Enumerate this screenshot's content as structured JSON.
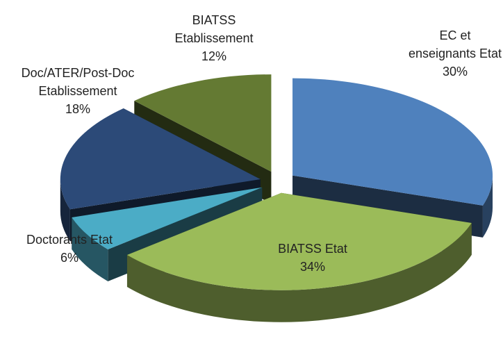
{
  "chart_data": {
    "type": "pie",
    "categories": [
      "EC et enseignants Etat",
      "BIATSS Etat",
      "Doctorants Etat",
      "Doc/ATER/Post-Doc Etablissement",
      "BIATSS Etablissement"
    ],
    "values": [
      30,
      34,
      6,
      18,
      12
    ],
    "value_labels": [
      "30%",
      "34%",
      "6%",
      "18%",
      "12%"
    ],
    "colors": [
      "#4f81bd",
      "#9bbb59",
      "#4bacc6",
      "#2c4a78",
      "#647a33"
    ]
  }
}
